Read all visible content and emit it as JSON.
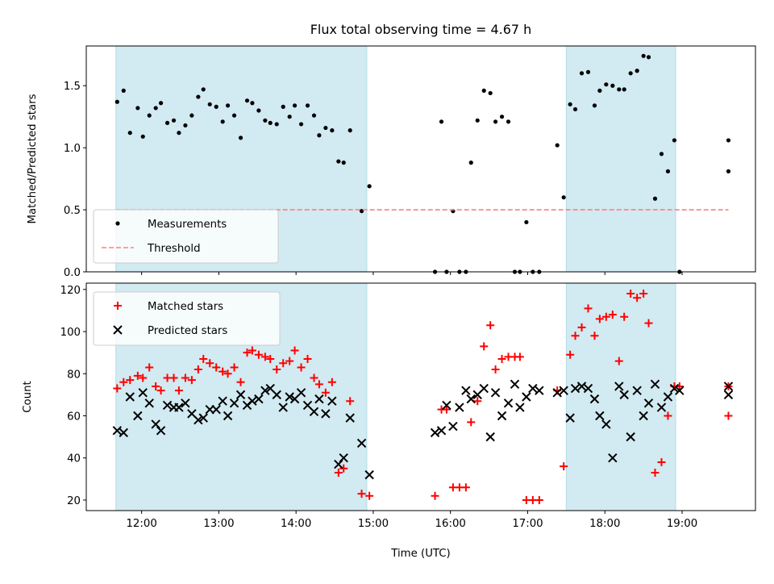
{
  "chart_data": [
    {
      "type": "scatter",
      "panel": "top",
      "title": "Flux total observing time = 4.67 h",
      "xlabel": "",
      "ylabel": "Matched/Predicted stars",
      "xlim": [
        "11:17",
        "19:57"
      ],
      "ylim": [
        0,
        1.82
      ],
      "yticks": [
        0.0,
        0.5,
        1.0,
        1.5
      ],
      "ytick_labels": [
        "0.0",
        "0.5",
        "1.0",
        "1.5"
      ],
      "xtick_labels_hidden": true,
      "shaded_intervals": [
        [
          "11:40",
          "14:55"
        ],
        [
          "17:30",
          "18:55"
        ]
      ],
      "shade_color": "#add8e6",
      "legend_position": "lower-left",
      "series": [
        {
          "name": "Measurements",
          "marker": "dot",
          "color": "#000000",
          "x": [
            "11:41",
            "11:46",
            "11:51",
            "11:57",
            "12:01",
            "12:06",
            "12:11",
            "12:15",
            "12:20",
            "12:25",
            "12:29",
            "12:34",
            "12:39",
            "12:44",
            "12:48",
            "12:53",
            "12:58",
            "13:03",
            "13:07",
            "13:12",
            "13:17",
            "13:22",
            "13:26",
            "13:31",
            "13:36",
            "13:40",
            "13:45",
            "13:50",
            "13:55",
            "13:59",
            "14:04",
            "14:09",
            "14:14",
            "14:18",
            "14:23",
            "14:28",
            "14:33",
            "14:37",
            "14:42",
            "14:51",
            "14:57",
            "15:48",
            "15:53",
            "15:57",
            "16:02",
            "16:07",
            "16:12",
            "16:16",
            "16:21",
            "16:26",
            "16:31",
            "16:35",
            "16:40",
            "16:45",
            "16:50",
            "16:54",
            "16:59",
            "17:04",
            "17:09",
            "17:23",
            "17:28",
            "17:33",
            "17:37",
            "17:42",
            "17:47",
            "17:52",
            "17:56",
            "18:01",
            "18:06",
            "18:11",
            "18:15",
            "18:20",
            "18:25",
            "18:30",
            "18:34",
            "18:39",
            "18:44",
            "18:49",
            "18:54",
            "18:58",
            "19:36",
            "19:36"
          ],
          "y": [
            1.37,
            1.46,
            1.12,
            1.32,
            1.09,
            1.26,
            1.32,
            1.36,
            1.2,
            1.22,
            1.12,
            1.18,
            1.26,
            1.41,
            1.47,
            1.35,
            1.33,
            1.21,
            1.34,
            1.26,
            1.08,
            1.38,
            1.36,
            1.3,
            1.22,
            1.2,
            1.19,
            1.33,
            1.25,
            1.34,
            1.19,
            1.34,
            1.26,
            1.1,
            1.16,
            1.14,
            0.89,
            0.88,
            1.14,
            0.49,
            0.69,
            0.0,
            1.21,
            0.0,
            0.49,
            0.0,
            0.0,
            0.88,
            1.22,
            1.46,
            1.44,
            1.21,
            1.25,
            1.21,
            0.0,
            0.0,
            0.4,
            0.0,
            0.0,
            1.02,
            0.6,
            1.35,
            1.31,
            1.6,
            1.61,
            1.34,
            1.46,
            1.51,
            1.5,
            1.47,
            1.47,
            1.6,
            1.62,
            1.74,
            1.73,
            0.59,
            0.95,
            0.81,
            1.06,
            0.0,
            0.81,
            1.06
          ]
        },
        {
          "name": "Threshold",
          "style": "dashed",
          "color": "#ff7f7f",
          "x": [
            "11:40",
            "19:36"
          ],
          "y": [
            0.5,
            0.5
          ]
        }
      ]
    },
    {
      "type": "scatter",
      "panel": "bottom",
      "title": "",
      "xlabel": "Time (UTC)",
      "ylabel": "Count",
      "xlim": [
        "11:17",
        "19:57"
      ],
      "ylim": [
        15,
        123
      ],
      "xticks": [
        "12:00",
        "13:00",
        "14:00",
        "15:00",
        "16:00",
        "17:00",
        "18:00",
        "19:00"
      ],
      "xtick_labels": [
        "12:00",
        "13:00",
        "14:00",
        "15:00",
        "16:00",
        "17:00",
        "18:00",
        "19:00"
      ],
      "yticks": [
        20,
        40,
        60,
        80,
        100,
        120
      ],
      "ytick_labels": [
        "20",
        "40",
        "60",
        "80",
        "100",
        "120"
      ],
      "shaded_intervals": [
        [
          "11:40",
          "14:55"
        ],
        [
          "17:30",
          "18:55"
        ]
      ],
      "shade_color": "#add8e6",
      "legend_position": "upper-left",
      "series": [
        {
          "name": "Matched stars",
          "marker": "plus",
          "color": "#ff0000",
          "x": [
            "11:41",
            "11:46",
            "11:51",
            "11:57",
            "12:01",
            "12:06",
            "12:11",
            "12:15",
            "12:20",
            "12:25",
            "12:29",
            "12:34",
            "12:39",
            "12:44",
            "12:48",
            "12:53",
            "12:58",
            "13:03",
            "13:07",
            "13:12",
            "13:17",
            "13:22",
            "13:26",
            "13:31",
            "13:36",
            "13:40",
            "13:45",
            "13:50",
            "13:55",
            "13:59",
            "14:04",
            "14:09",
            "14:14",
            "14:18",
            "14:23",
            "14:28",
            "14:33",
            "14:37",
            "14:42",
            "14:51",
            "14:57",
            "15:48",
            "15:53",
            "15:57",
            "16:02",
            "16:07",
            "16:12",
            "16:16",
            "16:21",
            "16:26",
            "16:31",
            "16:35",
            "16:40",
            "16:45",
            "16:50",
            "16:54",
            "16:59",
            "17:04",
            "17:09",
            "17:23",
            "17:28",
            "17:33",
            "17:37",
            "17:42",
            "17:47",
            "17:52",
            "17:56",
            "18:01",
            "18:06",
            "18:11",
            "18:15",
            "18:20",
            "18:25",
            "18:30",
            "18:34",
            "18:39",
            "18:44",
            "18:49",
            "18:54",
            "18:58",
            "19:36",
            "19:36"
          ],
          "y": [
            73,
            76,
            77,
            79,
            78,
            83,
            74,
            72,
            78,
            78,
            72,
            78,
            77,
            82,
            87,
            85,
            83,
            81,
            80,
            83,
            76,
            90,
            91,
            89,
            88,
            87,
            82,
            85,
            86,
            91,
            83,
            87,
            78,
            75,
            71,
            76,
            33,
            35,
            67,
            23,
            22,
            22,
            63,
            63,
            26,
            26,
            26,
            57,
            67,
            93,
            103,
            82,
            87,
            88,
            88,
            88,
            20,
            20,
            20,
            72,
            36,
            89,
            98,
            102,
            111,
            98,
            106,
            107,
            108,
            86,
            107,
            118,
            116,
            118,
            104,
            33,
            38,
            60,
            74,
            74,
            60,
            74
          ]
        },
        {
          "name": "Predicted stars",
          "marker": "x",
          "color": "#000000",
          "x": [
            "11:41",
            "11:46",
            "11:51",
            "11:57",
            "12:01",
            "12:06",
            "12:11",
            "12:15",
            "12:20",
            "12:25",
            "12:29",
            "12:34",
            "12:39",
            "12:44",
            "12:48",
            "12:53",
            "12:58",
            "13:03",
            "13:07",
            "13:12",
            "13:17",
            "13:22",
            "13:26",
            "13:31",
            "13:36",
            "13:40",
            "13:45",
            "13:50",
            "13:55",
            "13:59",
            "14:04",
            "14:09",
            "14:14",
            "14:18",
            "14:23",
            "14:28",
            "14:33",
            "14:37",
            "14:42",
            "14:51",
            "14:57",
            "15:48",
            "15:53",
            "15:57",
            "16:02",
            "16:07",
            "16:12",
            "16:16",
            "16:21",
            "16:26",
            "16:31",
            "16:35",
            "16:40",
            "16:45",
            "16:50",
            "16:54",
            "16:59",
            "17:04",
            "17:09",
            "17:23",
            "17:28",
            "17:33",
            "17:37",
            "17:42",
            "17:47",
            "17:52",
            "17:56",
            "18:01",
            "18:06",
            "18:11",
            "18:15",
            "18:20",
            "18:25",
            "18:30",
            "18:34",
            "18:39",
            "18:44",
            "18:49",
            "18:54",
            "18:58",
            "19:36",
            "19:36"
          ],
          "y": [
            53,
            52,
            69,
            60,
            71,
            66,
            56,
            53,
            65,
            64,
            64,
            66,
            61,
            58,
            59,
            63,
            63,
            67,
            60,
            66,
            70,
            65,
            67,
            68,
            72,
            73,
            70,
            64,
            69,
            68,
            71,
            65,
            62,
            68,
            61,
            67,
            37,
            40,
            59,
            47,
            32,
            52,
            53,
            65,
            55,
            64,
            72,
            68,
            70,
            73,
            50,
            71,
            60,
            66,
            75,
            64,
            69,
            73,
            72,
            71,
            72,
            59,
            73,
            74,
            73,
            68,
            60,
            56,
            40,
            74,
            70,
            50,
            72,
            60,
            66,
            75,
            64,
            69,
            73,
            72,
            74,
            70
          ]
        }
      ]
    }
  ]
}
